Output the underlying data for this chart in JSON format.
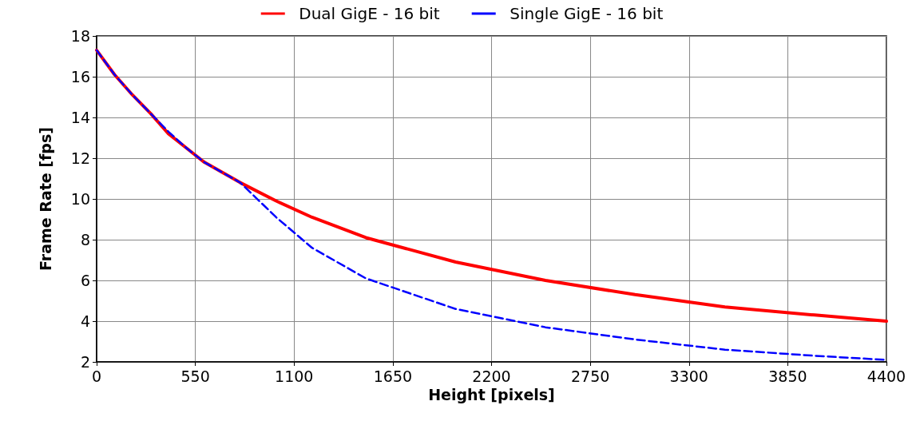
{
  "chart_data": {
    "type": "line",
    "xlabel": "Height [pixels]",
    "ylabel": "Frame Rate [fps]",
    "xlim": [
      0,
      4400
    ],
    "xticks": [
      0,
      550,
      1100,
      1650,
      2200,
      2750,
      3300,
      3850,
      4400
    ],
    "ylim": [
      2,
      18
    ],
    "yticks": [
      2,
      4,
      6,
      8,
      10,
      12,
      14,
      16,
      18
    ],
    "grid": true,
    "legend": "top",
    "marker": "none",
    "series": [
      {
        "name": "Dual GigE - 16 bit",
        "color": "#ff0000",
        "line_style": "solid",
        "x": [
          0,
          100,
          200,
          300,
          400,
          500,
          600,
          800,
          1000,
          1200,
          1500,
          2000,
          2500,
          3000,
          3500,
          4000,
          4400
        ],
        "values": [
          17.3,
          16.1,
          15.1,
          14.2,
          13.2,
          12.5,
          11.8,
          10.8,
          9.9,
          9.1,
          8.1,
          6.9,
          6.0,
          5.3,
          4.7,
          4.3,
          4.0
        ]
      },
      {
        "name": "Single GigE - 16 bit",
        "color": "#0000ff",
        "line_style": "dashed",
        "x": [
          0,
          100,
          200,
          300,
          400,
          500,
          600,
          800,
          1000,
          1200,
          1500,
          2000,
          2500,
          3000,
          3500,
          4000,
          4400
        ],
        "values": [
          17.3,
          16.1,
          15.1,
          14.2,
          13.3,
          12.5,
          11.8,
          10.8,
          9.1,
          7.6,
          6.1,
          4.6,
          3.7,
          3.1,
          2.6,
          2.3,
          2.1
        ]
      }
    ]
  }
}
